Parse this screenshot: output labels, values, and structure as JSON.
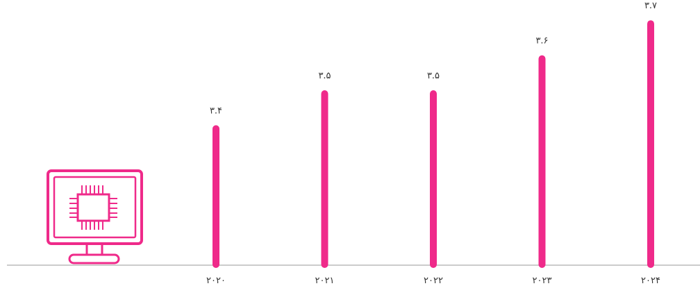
{
  "colors": {
    "accent": "#ef2a8a",
    "axis": "#999999",
    "text": "#333333"
  },
  "icon": "computer-monitor-chip-icon",
  "chart_data": {
    "type": "bar",
    "categories": [
      "۲۰۲۰",
      "۲۰۲۱",
      "۲۰۲۲",
      "۲۰۲۳",
      "۲۰۲۴"
    ],
    "values": [
      3.4,
      3.5,
      3.5,
      3.6,
      3.7
    ],
    "data_labels": [
      "۳.۴",
      "۳.۵",
      "۳.۵",
      "۳.۶",
      "۳.۷"
    ],
    "title": "",
    "xlabel": "",
    "ylabel": "",
    "ylim": [
      3.0,
      3.75
    ],
    "grid": false,
    "legend": "none"
  }
}
